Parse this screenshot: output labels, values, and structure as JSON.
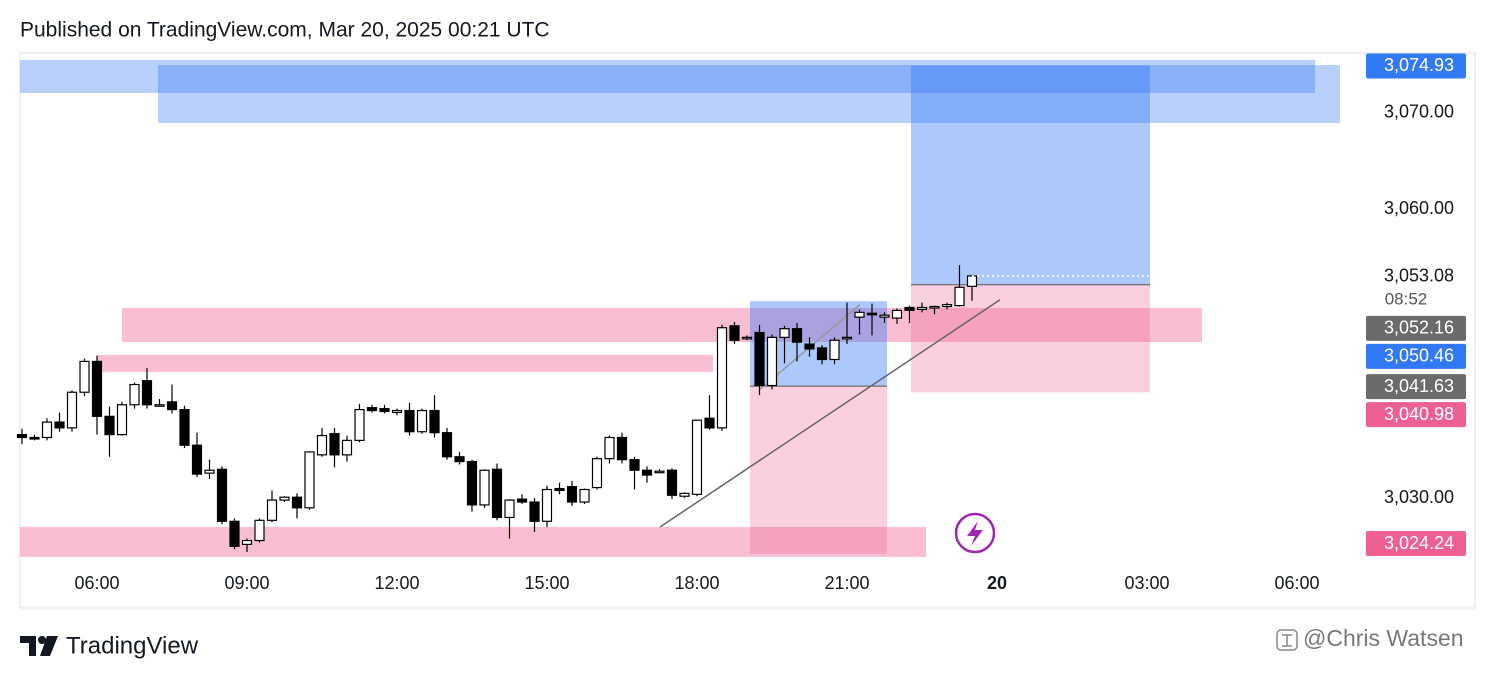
{
  "chart_data": {
    "type": "candlestick",
    "title": "Published on TradingView.com, Mar 20, 2025 00:21 UTC",
    "xlim": [
      4.46,
      31.26
    ],
    "ylim": [
      3023.06,
      3076.02
    ],
    "xticks": [
      {
        "value": 6,
        "label": "06:00"
      },
      {
        "value": 9,
        "label": "09:00"
      },
      {
        "value": 12,
        "label": "12:00"
      },
      {
        "value": 15,
        "label": "15:00"
      },
      {
        "value": 18,
        "label": "18:00"
      },
      {
        "value": 21,
        "label": "21:00"
      },
      {
        "value": 24,
        "label": "20"
      },
      {
        "value": 27,
        "label": "03:00"
      },
      {
        "value": 30,
        "label": "06:00"
      }
    ],
    "yticks": [
      {
        "value": 3030,
        "label": "3,030.00"
      },
      {
        "value": 3060,
        "label": "3,060.00"
      },
      {
        "value": 3070,
        "label": "3,070.00"
      }
    ],
    "x": [
      4.5,
      4.75,
      5,
      5.25,
      5.5,
      5.75,
      6,
      6.25,
      6.5,
      6.75,
      7,
      7.25,
      7.5,
      7.75,
      8,
      8.25,
      8.5,
      8.75,
      9,
      9.25,
      9.5,
      9.75,
      10,
      10.25,
      10.5,
      10.75,
      11,
      11.25,
      11.5,
      11.75,
      12,
      12.25,
      12.5,
      12.75,
      13,
      13.25,
      13.5,
      13.75,
      14,
      14.25,
      14.5,
      14.75,
      15,
      15.25,
      15.5,
      15.75,
      16,
      16.25,
      16.5,
      16.75,
      17,
      17.25,
      17.5,
      17.75,
      18,
      18.25,
      18.5,
      18.75,
      19,
      19.25,
      19.5,
      19.75,
      20,
      20.25,
      20.5,
      20.75,
      21,
      21.25,
      21.5,
      21.75,
      22,
      22.25,
      22.5,
      22.75,
      23,
      23.25,
      23.5
    ],
    "open": [
      3036.6,
      3036.3,
      3036.3,
      3037.9,
      3037.3,
      3041.0,
      3044.2,
      3038.5,
      3036.6,
      3039.7,
      3042.2,
      3039.7,
      3040.0,
      3039.2,
      3035.5,
      3032.6,
      3033.0,
      3027.6,
      3025.2,
      3025.6,
      3027.7,
      3029.8,
      3030.1,
      3029.0,
      3034.5,
      3036.7,
      3034.5,
      3036.0,
      3039.4,
      3039.3,
      3038.9,
      3039.1,
      3036.9,
      3039.1,
      3036.8,
      3034.3,
      3033.8,
      3029.3,
      3033.0,
      3028.0,
      3029.9,
      3029.6,
      3027.6,
      3031.0,
      3031.2,
      3029.6,
      3031.1,
      3034.1,
      3036.3,
      3034.0,
      3032.9,
      3032.7,
      3032.9,
      3030.2,
      3030.4,
      3038.3,
      3037.3,
      3047.9,
      3046.6,
      3047.2,
      3041.7,
      3046.7,
      3047.6,
      3046.0,
      3045.6,
      3044.4,
      3046.6,
      3048.8,
      3049.2,
      3048.8,
      3048.7,
      3049.8,
      3049.6,
      3049.8,
      3049.9,
      3050.0,
      3052.0
    ],
    "high": [
      3037.2,
      3036.6,
      3038.3,
      3038.9,
      3041.2,
      3044.5,
      3044.8,
      3039.5,
      3040.0,
      3042.0,
      3043.5,
      3040.3,
      3041.8,
      3039.6,
      3036.8,
      3034.0,
      3033.3,
      3027.9,
      3025.8,
      3027.9,
      3030.8,
      3030.2,
      3030.5,
      3034.8,
      3037.3,
      3037.3,
      3036.5,
      3039.8,
      3039.7,
      3039.7,
      3039.3,
      3039.9,
      3039.3,
      3040.7,
      3037.3,
      3034.8,
      3034.0,
      3033.0,
      3033.6,
      3029.9,
      3030.4,
      3030.0,
      3031.3,
      3031.6,
      3031.8,
      3031.0,
      3034.3,
      3036.5,
      3036.8,
      3034.3,
      3033.3,
      3033.0,
      3033.1,
      3030.6,
      3038.1,
      3040.7,
      3048.0,
      3048.3,
      3046.9,
      3048.0,
      3047.0,
      3047.9,
      3048.2,
      3046.7,
      3045.9,
      3046.7,
      3050.3,
      3049.6,
      3050.2,
      3049.3,
      3049.7,
      3050.0,
      3050.3,
      3050.0,
      3050.3,
      3054.2,
      3053.2
    ],
    "low": [
      3035.6,
      3036.0,
      3036.0,
      3036.9,
      3036.9,
      3040.6,
      3036.6,
      3034.3,
      3036.5,
      3039.3,
      3039.3,
      3039.5,
      3038.8,
      3035.2,
      3032.2,
      3032.0,
      3027.3,
      3024.7,
      3024.4,
      3025.4,
      3027.5,
      3029.6,
      3027.9,
      3028.8,
      3034.3,
      3033.2,
      3033.8,
      3035.8,
      3038.9,
      3038.8,
      3038.6,
      3036.5,
      3036.7,
      3036.3,
      3034.0,
      3033.5,
      3028.6,
      3029.0,
      3027.7,
      3025.8,
      3029.4,
      3026.5,
      3027.0,
      3030.4,
      3029.2,
      3029.4,
      3030.9,
      3033.6,
      3033.6,
      3030.9,
      3031.6,
      3032.6,
      3029.9,
      3030.0,
      3030.2,
      3037.1,
      3037.0,
      3046.0,
      3046.4,
      3040.7,
      3041.3,
      3044.0,
      3044.2,
      3044.7,
      3043.9,
      3043.9,
      3046.0,
      3047.0,
      3046.9,
      3048.2,
      3048.1,
      3048.2,
      3049.3,
      3049.1,
      3049.6,
      3049.9,
      3050.5
    ],
    "close": [
      3036.3,
      3036.2,
      3037.9,
      3037.3,
      3041.0,
      3044.2,
      3038.5,
      3036.6,
      3039.7,
      3041.8,
      3039.7,
      3039.7,
      3039.2,
      3035.5,
      3032.5,
      3032.9,
      3027.6,
      3025.0,
      3025.6,
      3027.7,
      3029.8,
      3030.1,
      3029.0,
      3034.8,
      3036.5,
      3034.5,
      3036.0,
      3039.2,
      3039.1,
      3039.0,
      3039.1,
      3036.9,
      3039.1,
      3036.8,
      3034.3,
      3033.8,
      3029.3,
      3032.9,
      3028.0,
      3029.8,
      3029.6,
      3027.6,
      3030.9,
      3030.8,
      3029.6,
      3030.9,
      3034.1,
      3036.3,
      3034.0,
      3032.9,
      3032.4,
      3032.8,
      3030.3,
      3030.5,
      3038.1,
      3037.3,
      3047.7,
      3046.4,
      3046.7,
      3041.7,
      3046.7,
      3047.6,
      3046.2,
      3045.5,
      3044.4,
      3046.4,
      3046.7,
      3049.3,
      3049.1,
      3049.0,
      3049.5,
      3049.5,
      3049.8,
      3049.9,
      3050.1,
      3051.9,
      3053.08
    ],
    "up_color": "#ffffff",
    "down_color": "#000000",
    "zones": [
      {
        "start": 4.46,
        "end": 30.36,
        "top": 3075.5,
        "bottom": 3072.08,
        "color": "rgba(41,110,245,0.32)"
      },
      {
        "start": 7.22,
        "end": 30.86,
        "top": 3074.98,
        "bottom": 3068.96,
        "color": "rgba(41,110,245,0.32)"
      },
      {
        "start": 6.5,
        "end": 28.1,
        "top": 3049.75,
        "bottom": 3046.22,
        "color": "rgba(240,70,130,0.35)"
      },
      {
        "start": 6.0,
        "end": 18.32,
        "top": 3044.87,
        "bottom": 3043.11,
        "color": "rgba(240,70,130,0.35)"
      },
      {
        "start": 4.46,
        "end": 22.58,
        "top": 3027.01,
        "bottom": 3023.9,
        "color": "rgba(240,70,130,0.35)"
      }
    ],
    "positions": [
      {
        "start": 19.06,
        "end": 21.8,
        "target": 3050.46,
        "target_label": "3,050.46",
        "entry": 3041.63,
        "entry_label": "3,041.63",
        "stop": 3024.24,
        "stop_label": "3,024.24"
      },
      {
        "start": 22.28,
        "end": 27.06,
        "target": 3074.93,
        "target_label": "3,074.93",
        "entry": 3052.16,
        "entry_label": "3,052.16",
        "stop": 3040.98,
        "stop_label": "3,040.98"
      }
    ],
    "target_color": "#3179f5",
    "entry_color": "#6b6b6b",
    "stop_color": "#ee5f93",
    "lines": [
      {
        "x": [
          17.26,
          24.06
        ],
        "y": [
          3027.0,
          3050.6
        ],
        "color": "#666666"
      },
      {
        "x": [
          19.26,
          21.26
        ],
        "y": [
          3041.3,
          3050.1
        ],
        "color": "#999999"
      }
    ],
    "last_price_label": "3,053.08",
    "countdown": "08:52"
  },
  "footer": {
    "brand": "TradingView",
    "watermark": "@Chris Watsen"
  }
}
